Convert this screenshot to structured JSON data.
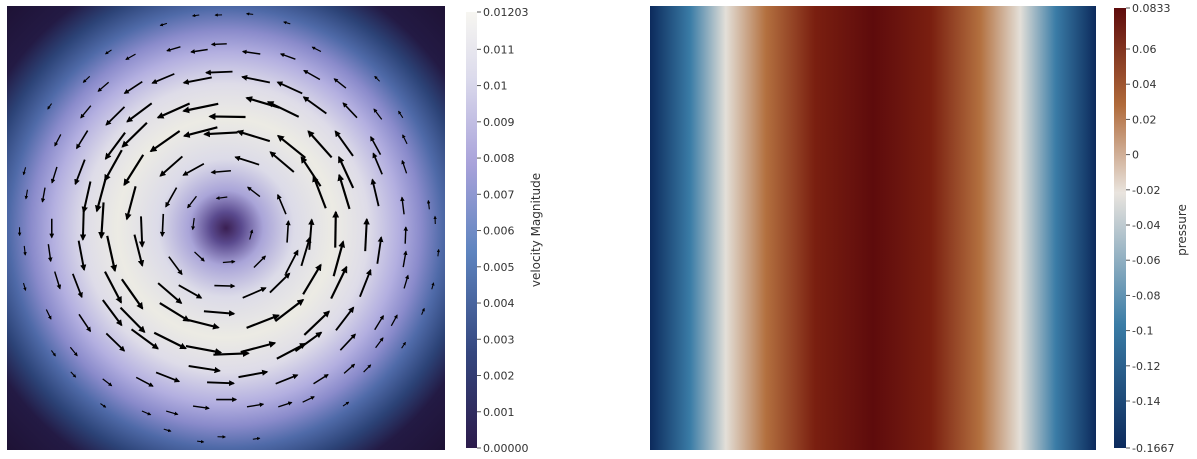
{
  "chart_data": [
    {
      "type": "heatmap",
      "title": "",
      "field": "velocity Magnitude",
      "colorbar": {
        "title": "velocity Magnitude",
        "min": 0.0,
        "max": 0.01203,
        "tick_labels": [
          "0.00000",
          "0.001",
          "0.002",
          "0.003",
          "0.004",
          "0.005",
          "0.006",
          "0.007",
          "0.008",
          "0.009",
          "0.01",
          "0.011",
          "0.01203"
        ],
        "tick_values": [
          0.0,
          0.001,
          0.002,
          0.003,
          0.004,
          0.005,
          0.006,
          0.007,
          0.008,
          0.009,
          0.01,
          0.011,
          0.01203
        ],
        "colors": [
          "#2c1b4b",
          "#3b4e92",
          "#6a84c0",
          "#a9a4d8",
          "#e4e3e1",
          "#f4f2ec"
        ]
      },
      "overlay": "velocity glyph arrows (counter-clockwise vortex)",
      "vortex_direction": "counter-clockwise",
      "peak_ring_fraction_of_half_width": 0.55
    },
    {
      "type": "heatmap",
      "title": "",
      "field": "pressure",
      "colorbar": {
        "title": "pressure",
        "min": -0.1667,
        "max": 0.0833,
        "tick_labels": [
          "-0.1667",
          "-0.14",
          "-0.12",
          "-0.1",
          "-0.08",
          "-0.06",
          "-0.04",
          "-0.02",
          "0",
          "0.02",
          "0.04",
          "0.06",
          "0.0833"
        ],
        "tick_values": [
          -0.1667,
          -0.14,
          -0.12,
          -0.1,
          -0.08,
          -0.06,
          -0.04,
          -0.02,
          0.0,
          0.02,
          0.04,
          0.06,
          0.0833
        ],
        "colors": [
          "#0c2a5c",
          "#3a7ca6",
          "#e9e4de",
          "#b06a3a",
          "#5e0b0c"
        ]
      },
      "variation": "horizontal only, maximum at center, minimum at left and right edges"
    }
  ]
}
